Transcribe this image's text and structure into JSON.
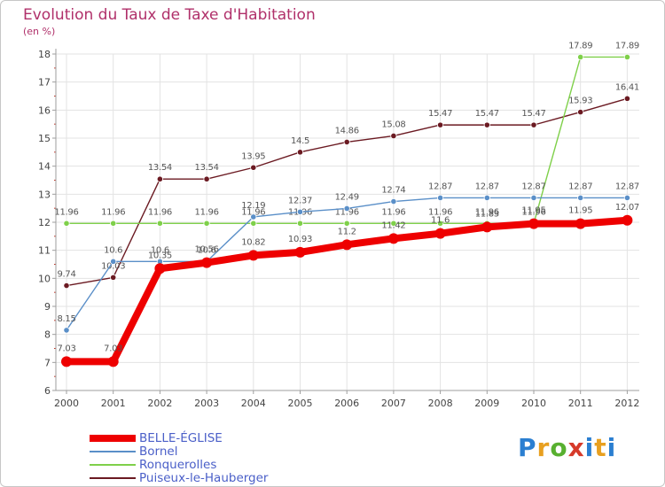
{
  "title": "Evolution du Taux de Taxe d'Habitation",
  "unit_label": "(en %)",
  "logo_text": "Proxiti",
  "colors": {
    "title": "#b0306a",
    "legend_text": "#4a5fc8",
    "axis": "#9e9e9e",
    "grid": "#e3e3e3"
  },
  "chart_data": {
    "type": "line",
    "x": [
      "2000",
      "2001",
      "2002",
      "2003",
      "2004",
      "2005",
      "2006",
      "2007",
      "2008",
      "2009",
      "2010",
      "2011",
      "2012"
    ],
    "ylim": [
      6,
      18
    ],
    "yticks": [
      "6",
      "7",
      "8",
      "9",
      "10",
      "11",
      "12",
      "13",
      "14",
      "15",
      "16",
      "17",
      "18"
    ],
    "grid": true,
    "legend_position": "bottom-left",
    "series": [
      {
        "name": "Puiseux-le-Hauberger",
        "color": "#6b1a22",
        "values": [
          9.74,
          10.03,
          13.54,
          13.54,
          13.95,
          14.5,
          14.86,
          15.08,
          15.47,
          15.47,
          15.47,
          15.93,
          16.41
        ],
        "labels": [
          "9.74",
          "10.03",
          "13.54",
          "13.54",
          "13.95",
          "14.5",
          "14.86",
          "15.08",
          "15.47",
          "15.47",
          "15.47",
          "15.93",
          "16.41"
        ]
      },
      {
        "name": "Ronquerolles",
        "color": "#7fd04a",
        "values": [
          11.96,
          11.96,
          11.96,
          11.96,
          11.96,
          11.96,
          11.96,
          11.96,
          11.96,
          11.96,
          11.96,
          17.89,
          17.89
        ],
        "labels": [
          "11.96",
          "11.96",
          "11.96",
          "11.96",
          "11.96",
          "11.96",
          "11.96",
          "11.96",
          "11.96",
          "11.96",
          "11.96",
          "17.89",
          "17.89"
        ]
      },
      {
        "name": "Bornel",
        "color": "#5a8fc8",
        "values": [
          8.15,
          10.6,
          10.6,
          10.6,
          12.19,
          12.37,
          12.49,
          12.74,
          12.87,
          12.87,
          12.87,
          12.87,
          12.87
        ],
        "labels": [
          "8.15",
          "10.6",
          "10.6",
          "10.6",
          "12.19",
          "12.37",
          "12.49",
          "12.74",
          "12.87",
          "12.87",
          "12.87",
          "12.87",
          "12.87"
        ]
      },
      {
        "name": "BELLE-ÉGLISE",
        "color": "#ee0000",
        "values": [
          7.03,
          7.03,
          10.35,
          10.56,
          10.82,
          10.93,
          11.2,
          11.42,
          11.6,
          11.83,
          11.95,
          11.95,
          12.07
        ],
        "labels": [
          "7.03",
          "7.03",
          "10.35",
          "10.56",
          "10.82",
          "10.93",
          "11.2",
          "11.42",
          "11.6",
          "11.83",
          "11.95",
          "11.95",
          "12.07"
        ]
      }
    ]
  },
  "legend": [
    {
      "name": "BELLE-ÉGLISE",
      "color": "#ee0000"
    },
    {
      "name": "Bornel",
      "color": "#5a8fc8"
    },
    {
      "name": "Ronquerolles",
      "color": "#7fd04a"
    },
    {
      "name": "Puiseux-le-Hauberger",
      "color": "#6b1a22"
    }
  ]
}
